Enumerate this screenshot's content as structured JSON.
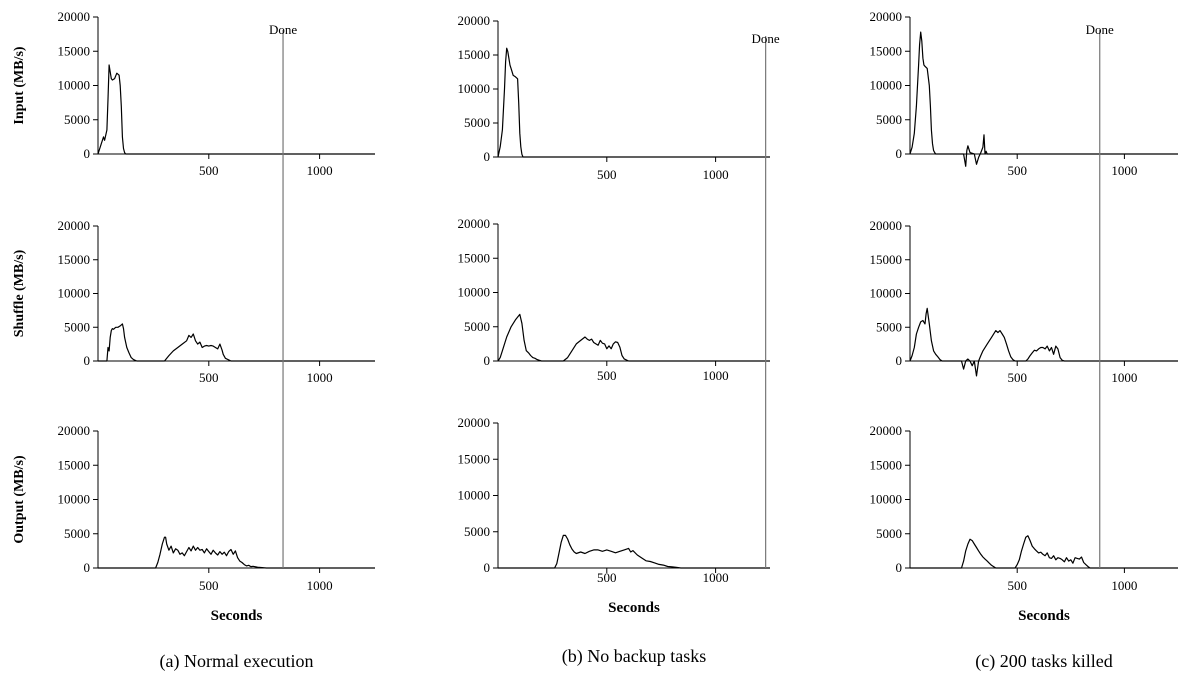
{
  "chart_data": [
    {
      "type": "line",
      "caption": "(a) Normal execution",
      "done_label": "Done",
      "done_at": 835,
      "xlabel": "Seconds",
      "xlim": [
        0,
        1250
      ],
      "xticks": [
        "500",
        "1000"
      ],
      "ylim": [
        0,
        20000
      ],
      "yticks": [
        "0",
        "5000",
        "10000",
        "15000",
        "20000"
      ],
      "panels": [
        {
          "ylabel": "Input (MB/s)",
          "x": [
            0,
            15,
            25,
            30,
            40,
            45,
            50,
            55,
            60,
            65,
            75,
            85,
            95,
            100,
            105,
            110,
            115,
            120,
            125,
            130,
            140,
            1250
          ],
          "y": [
            0,
            1500,
            2500,
            2000,
            3500,
            8000,
            13000,
            12000,
            11000,
            10800,
            11000,
            11800,
            11500,
            10000,
            7000,
            2500,
            800,
            200,
            0,
            0,
            0,
            0
          ]
        },
        {
          "ylabel": "Shuffle (MB/s)",
          "x": [
            0,
            40,
            45,
            50,
            55,
            60,
            65,
            70,
            80,
            90,
            100,
            110,
            115,
            120,
            130,
            140,
            150,
            160,
            175,
            200,
            300,
            320,
            340,
            360,
            380,
            400,
            410,
            420,
            430,
            440,
            450,
            460,
            470,
            480,
            490,
            500,
            510,
            520,
            540,
            550,
            560,
            565,
            575,
            600,
            1250
          ],
          "y": [
            0,
            0,
            2000,
            1500,
            3500,
            4500,
            4800,
            4700,
            5000,
            5000,
            5200,
            5500,
            4800,
            3500,
            2000,
            1200,
            500,
            200,
            0,
            0,
            0,
            800,
            1500,
            2000,
            2500,
            3000,
            3800,
            3500,
            4000,
            3000,
            2500,
            2800,
            2000,
            2200,
            2300,
            2200,
            2300,
            2200,
            1800,
            2500,
            1600,
            1000,
            400,
            0,
            0
          ]
        },
        {
          "ylabel": "Output (MB/s)",
          "x": [
            0,
            260,
            270,
            280,
            290,
            300,
            305,
            310,
            320,
            330,
            340,
            350,
            360,
            370,
            380,
            390,
            400,
            410,
            420,
            430,
            440,
            450,
            460,
            470,
            480,
            490,
            500,
            510,
            520,
            530,
            540,
            550,
            560,
            570,
            580,
            590,
            600,
            610,
            620,
            630,
            640,
            650,
            660,
            670,
            680,
            690,
            700,
            720,
            740,
            760,
            1250
          ],
          "y": [
            0,
            0,
            800,
            2000,
            3500,
            4500,
            4500,
            3500,
            2600,
            3200,
            2200,
            2800,
            2600,
            2000,
            2200,
            1800,
            2400,
            3000,
            2500,
            3200,
            2600,
            3000,
            2600,
            2700,
            2200,
            2800,
            2400,
            2000,
            2600,
            2200,
            1900,
            2400,
            2000,
            2300,
            1800,
            2400,
            2700,
            2000,
            2500,
            1500,
            1000,
            800,
            500,
            300,
            400,
            200,
            250,
            120,
            60,
            0,
            0
          ]
        }
      ]
    },
    {
      "type": "line",
      "caption": "(b) No backup tasks",
      "done_label": "Done",
      "done_at": 1230,
      "xlabel": "Seconds",
      "xlim": [
        0,
        1250
      ],
      "xticks": [
        "500",
        "1000"
      ],
      "ylim": [
        0,
        20000
      ],
      "yticks": [
        "0",
        "5000",
        "10000",
        "15000",
        "20000"
      ],
      "panels": [
        {
          "ylabel": "",
          "x": [
            0,
            10,
            20,
            30,
            35,
            40,
            45,
            50,
            55,
            60,
            70,
            80,
            90,
            95,
            100,
            105,
            110,
            115,
            120,
            1250
          ],
          "y": [
            0,
            1500,
            4000,
            10000,
            14000,
            16000,
            15500,
            14500,
            13500,
            13000,
            12000,
            11800,
            11500,
            8000,
            3500,
            1500,
            400,
            0,
            0,
            0
          ]
        },
        {
          "ylabel": "",
          "x": [
            0,
            10,
            20,
            40,
            60,
            80,
            100,
            110,
            120,
            130,
            140,
            150,
            160,
            170,
            180,
            190,
            200,
            300,
            320,
            340,
            360,
            380,
            400,
            410,
            420,
            430,
            440,
            450,
            460,
            470,
            480,
            490,
            500,
            510,
            520,
            530,
            540,
            550,
            560,
            570,
            580,
            600,
            1250
          ],
          "y": [
            0,
            500,
            1500,
            3500,
            5000,
            6000,
            6800,
            5500,
            3000,
            1500,
            1200,
            800,
            500,
            400,
            200,
            100,
            0,
            0,
            500,
            1500,
            2500,
            3000,
            3500,
            3200,
            3000,
            3200,
            2700,
            2500,
            2300,
            3000,
            2600,
            2500,
            1800,
            2200,
            1800,
            2500,
            2800,
            2700,
            2000,
            800,
            300,
            0,
            0
          ]
        },
        {
          "ylabel": "",
          "x": [
            0,
            260,
            270,
            280,
            290,
            300,
            310,
            320,
            330,
            340,
            350,
            360,
            380,
            400,
            420,
            440,
            460,
            480,
            500,
            520,
            540,
            560,
            580,
            600,
            610,
            620,
            640,
            660,
            680,
            700,
            720,
            740,
            760,
            780,
            800,
            820,
            840,
            1250
          ],
          "y": [
            0,
            0,
            600,
            2000,
            3500,
            4500,
            4500,
            4000,
            3200,
            2600,
            2200,
            2000,
            2200,
            2000,
            2300,
            2500,
            2500,
            2300,
            2500,
            2300,
            2100,
            2300,
            2500,
            2700,
            2200,
            2400,
            1800,
            1400,
            1000,
            900,
            700,
            500,
            400,
            200,
            150,
            80,
            0,
            0
          ]
        }
      ]
    },
    {
      "type": "line",
      "caption": "(c) 200 tasks killed",
      "done_label": "Done",
      "done_at": 885,
      "xlabel": "Seconds",
      "xlim": [
        0,
        1250
      ],
      "xticks": [
        "500",
        "1000"
      ],
      "ylim": [
        0,
        20000
      ],
      "yticks": [
        "0",
        "5000",
        "10000",
        "15000",
        "20000"
      ],
      "panels": [
        {
          "ylabel": "",
          "x": [
            0,
            10,
            20,
            30,
            40,
            45,
            50,
            55,
            60,
            65,
            70,
            80,
            90,
            95,
            100,
            105,
            110,
            115,
            120,
            140,
            250,
            260,
            265,
            270,
            280,
            300,
            310,
            320,
            330,
            340,
            345,
            350,
            355,
            360,
            380,
            1250
          ],
          "y": [
            0,
            1000,
            3000,
            7000,
            13000,
            16000,
            17800,
            16500,
            14000,
            13000,
            12800,
            12500,
            10000,
            7000,
            3500,
            1500,
            500,
            200,
            0,
            0,
            0,
            -1800,
            500,
            1200,
            200,
            0,
            -1500,
            -500,
            200,
            1000,
            2800,
            0,
            400,
            0,
            0,
            0
          ]
        },
        {
          "ylabel": "",
          "x": [
            0,
            10,
            20,
            30,
            40,
            50,
            60,
            70,
            75,
            80,
            90,
            100,
            110,
            120,
            130,
            140,
            150,
            160,
            170,
            180,
            200,
            240,
            250,
            260,
            270,
            280,
            290,
            300,
            310,
            320,
            330,
            340,
            360,
            380,
            400,
            410,
            420,
            430,
            440,
            450,
            460,
            470,
            480,
            490,
            500,
            510,
            520,
            530,
            540,
            550,
            560,
            570,
            580,
            590,
            600,
            610,
            620,
            630,
            640,
            650,
            660,
            670,
            680,
            690,
            700,
            710,
            720,
            1250
          ],
          "y": [
            0,
            800,
            2000,
            4000,
            5000,
            5800,
            6000,
            5500,
            7000,
            7800,
            5500,
            3000,
            1500,
            1000,
            600,
            200,
            0,
            0,
            0,
            0,
            0,
            0,
            -1200,
            0,
            300,
            0,
            -700,
            0,
            -2200,
            0,
            800,
            1500,
            2500,
            3500,
            4500,
            4200,
            4500,
            4000,
            3500,
            2500,
            1500,
            600,
            200,
            0,
            0,
            0,
            0,
            0,
            0,
            300,
            800,
            1200,
            1600,
            1500,
            1800,
            2000,
            2000,
            1800,
            2200,
            1500,
            2000,
            1000,
            2200,
            1800,
            500,
            100,
            0,
            0
          ]
        },
        {
          "ylabel": "",
          "x": [
            0,
            240,
            250,
            260,
            270,
            280,
            290,
            300,
            310,
            320,
            330,
            340,
            350,
            360,
            370,
            380,
            390,
            400,
            420,
            440,
            460,
            480,
            490,
            500,
            510,
            520,
            530,
            540,
            550,
            560,
            570,
            580,
            590,
            600,
            610,
            620,
            630,
            640,
            650,
            660,
            670,
            680,
            690,
            700,
            710,
            720,
            730,
            740,
            750,
            760,
            770,
            780,
            790,
            800,
            810,
            820,
            830,
            840,
            1250
          ],
          "y": [
            0,
            0,
            1000,
            2500,
            3500,
            4200,
            4000,
            3500,
            3000,
            2500,
            2000,
            1600,
            1300,
            1000,
            700,
            400,
            200,
            0,
            0,
            0,
            0,
            0,
            0,
            500,
            1200,
            2500,
            3500,
            4500,
            4700,
            4000,
            3200,
            2800,
            2500,
            2200,
            2300,
            2000,
            1800,
            2200,
            1500,
            1400,
            1800,
            1200,
            1500,
            1400,
            1200,
            900,
            1500,
            1000,
            1200,
            700,
            1500,
            1400,
            1300,
            1600,
            800,
            500,
            200,
            0,
            0
          ]
        }
      ]
    }
  ]
}
